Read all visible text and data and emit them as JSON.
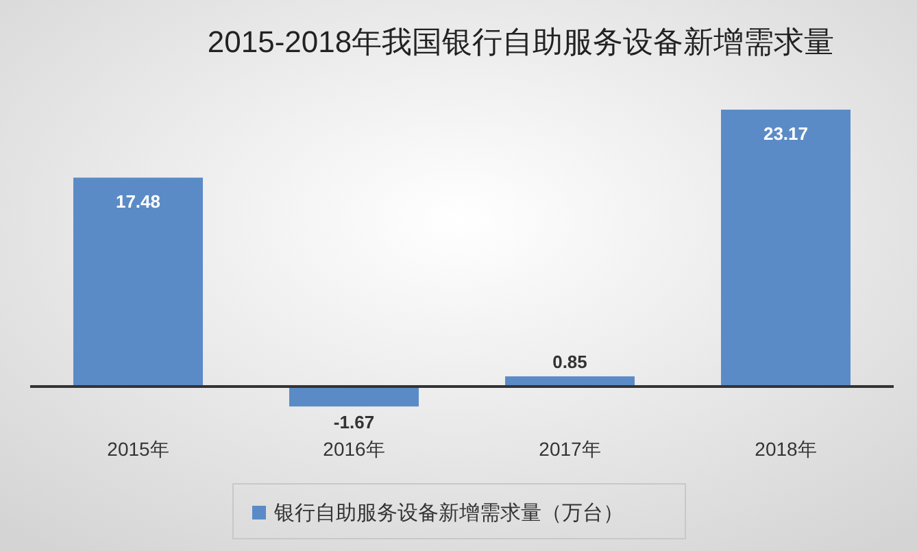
{
  "chart_data": {
    "type": "bar",
    "title": "2015-2018年我国银行自助服务设备新增需求量",
    "categories": [
      "2015年",
      "2016年",
      "2017年",
      "2018年"
    ],
    "series": [
      {
        "name": "银行自助服务设备新增需求量（万台）",
        "color": "#5b8bc7",
        "values": [
          17.48,
          -1.67,
          0.85,
          23.17
        ]
      }
    ],
    "data_labels": true,
    "legend": "bottom"
  }
}
